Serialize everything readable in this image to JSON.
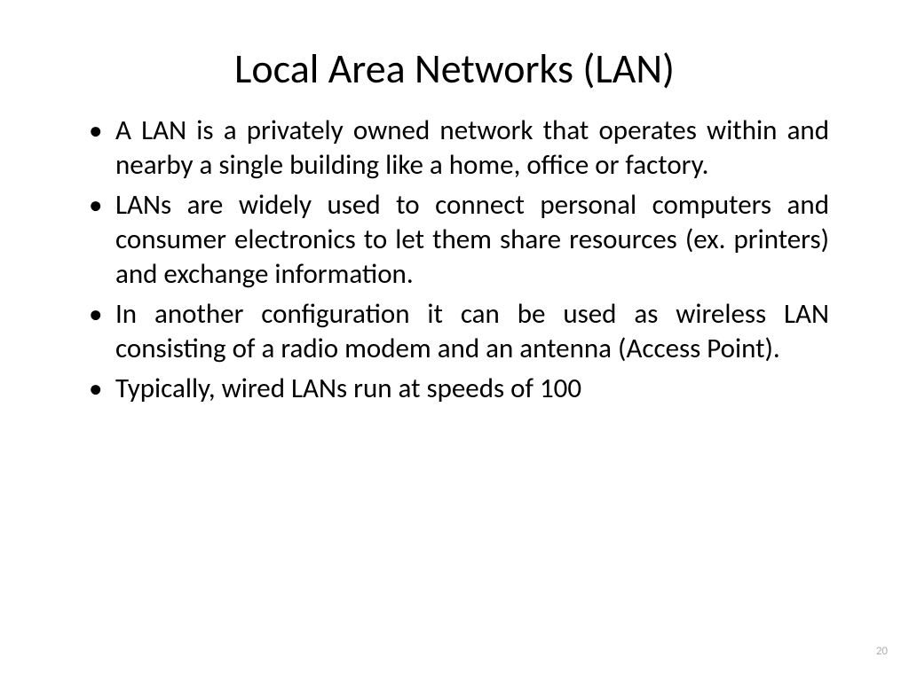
{
  "slide": {
    "title": "Local Area Networks (LAN)",
    "bullets": [
      "A LAN is a privately owned network that operates within and nearby a single building like a home, office or factory.",
      "LANs are widely used to connect personal computers and consumer electronics to let them share resources (ex. printers) and exchange information.",
      "In another configuration it can be used as wireless LAN consisting of a radio modem and an antenna (Access Point).",
      "Typically, wired LANs run at speeds of 100"
    ],
    "page_number": "20",
    "style": {
      "background_color": "#ffffff",
      "title_fontsize": 46,
      "title_color": "#000000",
      "body_fontsize": 31,
      "body_color": "#000000",
      "page_number_color": "#b0b0b0",
      "page_number_fontsize": 13,
      "font_family": "Calibri"
    }
  }
}
